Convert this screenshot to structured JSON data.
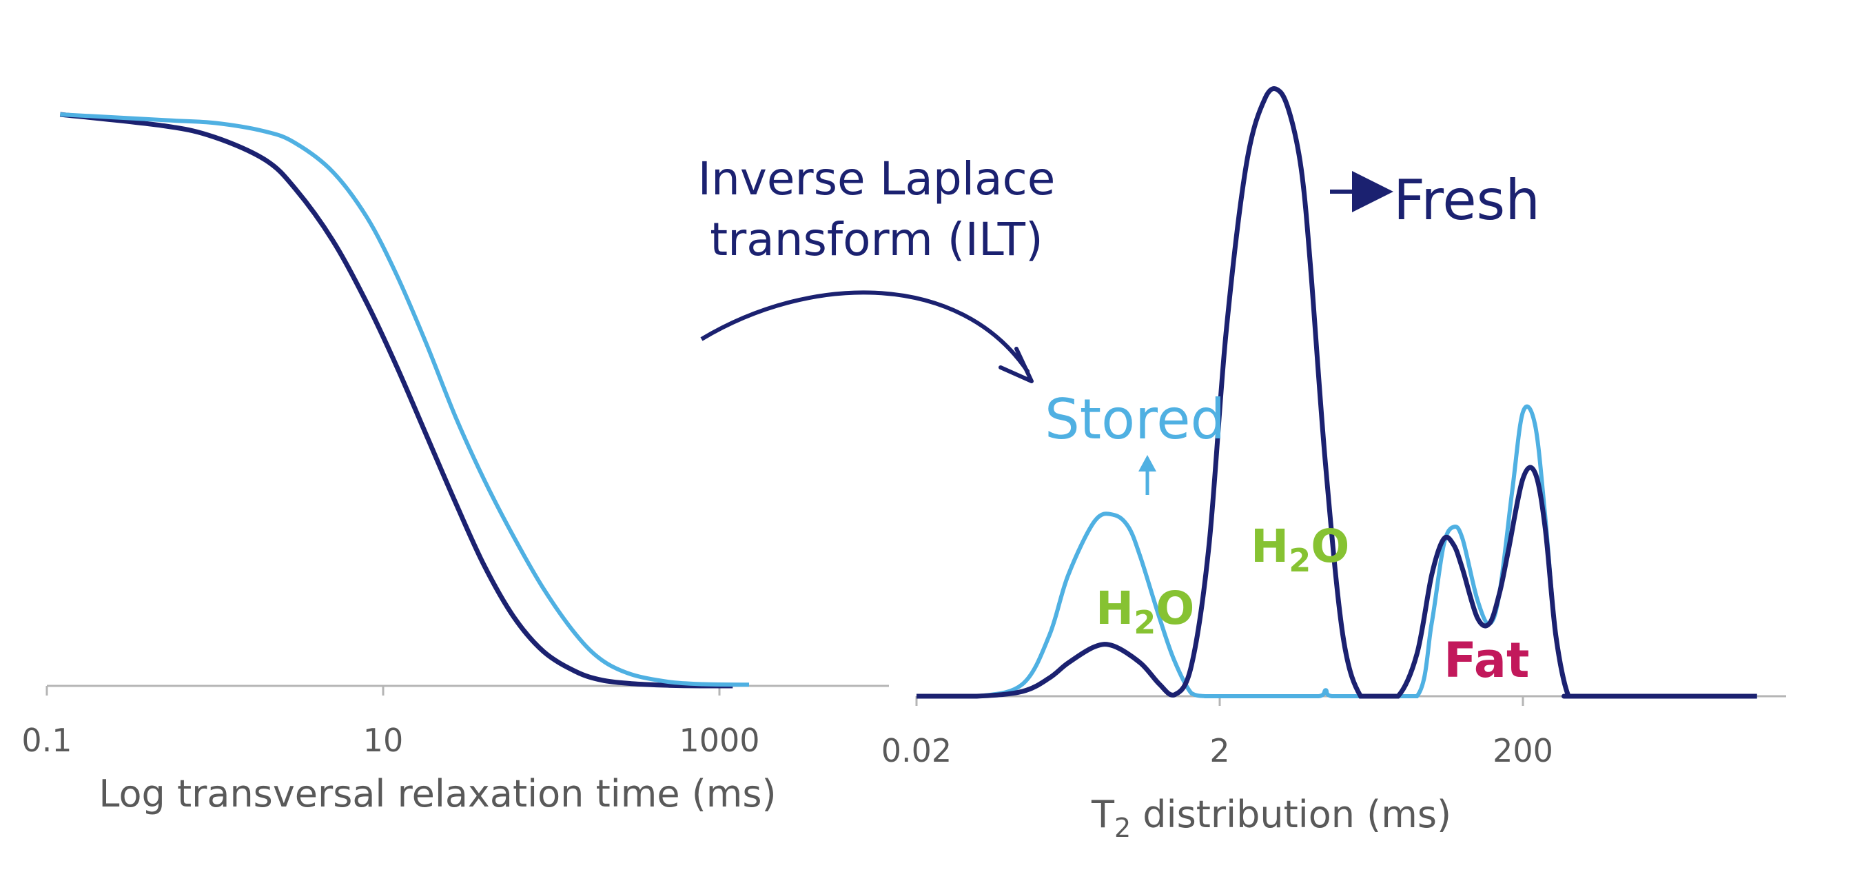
{
  "colors": {
    "fresh": "#1b2170",
    "stored": "#4fb0e2",
    "water_label": "#86c232",
    "fat_label": "#c2185b",
    "axis": "#b5b5b5",
    "axis_text": "#595959"
  },
  "annotation": {
    "line1": "Inverse Laplace",
    "line2": "transform (ILT)"
  },
  "legend": {
    "fresh": "Fresh",
    "stored": "Stored"
  },
  "labels": {
    "water": "H",
    "water_sub": "2",
    "water_tail": "O",
    "fat": "Fat"
  },
  "chart_data": [
    {
      "type": "line",
      "name": "decay",
      "xscale": "log",
      "xlim": [
        0.1,
        4000
      ],
      "ylim": [
        0,
        1
      ],
      "xlabel": "Log transversal relaxation time (ms)",
      "ylabel": "",
      "xticks": [
        0.1,
        10,
        1000
      ],
      "xtick_labels": [
        "0.1",
        "10",
        "1000"
      ],
      "grid": false,
      "series": [
        {
          "key": "fresh",
          "x": [
            0.12,
            0.5,
            1,
            2,
            3,
            5,
            8,
            12,
            18,
            27,
            40,
            60,
            90,
            140,
            200,
            300,
            500,
            800,
            1200
          ],
          "y": [
            1.0,
            0.98,
            0.96,
            0.92,
            0.87,
            0.78,
            0.67,
            0.56,
            0.44,
            0.32,
            0.21,
            0.12,
            0.06,
            0.025,
            0.01,
            0.004,
            0.001,
            0.0,
            0.0
          ]
        },
        {
          "key": "stored",
          "x": [
            0.12,
            0.5,
            1,
            2,
            3,
            5,
            8,
            12,
            18,
            27,
            40,
            60,
            90,
            140,
            200,
            300,
            500,
            800,
            1500
          ],
          "y": [
            1.0,
            0.99,
            0.985,
            0.97,
            0.95,
            0.9,
            0.82,
            0.72,
            0.6,
            0.47,
            0.36,
            0.26,
            0.17,
            0.09,
            0.045,
            0.02,
            0.007,
            0.003,
            0.002
          ]
        }
      ]
    },
    {
      "type": "line",
      "name": "t2-distribution",
      "xscale": "log",
      "xlim": [
        0.02,
        7000
      ],
      "ylim": [
        0,
        1
      ],
      "xlabel": "T",
      "xlabel_sub": "2",
      "xlabel_tail": " distribution (ms)",
      "ylabel": "",
      "xticks": [
        0.02,
        2,
        200
      ],
      "xtick_labels": [
        "0.02",
        "2",
        "200"
      ],
      "grid": false,
      "series": [
        {
          "key": "fresh",
          "x": [
            0.02,
            0.05,
            0.1,
            0.15,
            0.2,
            0.3,
            0.4,
            0.6,
            0.8,
            1.0,
            1.3,
            1.7,
            2.2,
            3,
            4,
            5,
            6,
            7,
            8,
            10,
            13,
            17,
            22,
            30,
            40,
            50,
            60,
            70,
            80,
            100,
            120,
            140,
            160,
            200,
            240,
            280,
            330,
            400,
            480,
            7000
          ],
          "y": [
            0.0,
            0.0,
            0.008,
            0.03,
            0.055,
            0.082,
            0.083,
            0.055,
            0.02,
            0.002,
            0.05,
            0.25,
            0.6,
            0.88,
            0.99,
            1.0,
            0.95,
            0.86,
            0.7,
            0.38,
            0.1,
            0.0,
            0.0,
            0.0,
            0.07,
            0.2,
            0.26,
            0.25,
            0.21,
            0.13,
            0.12,
            0.17,
            0.24,
            0.36,
            0.37,
            0.28,
            0.1,
            0.0,
            0.0,
            0.0
          ]
        },
        {
          "key": "stored",
          "x": [
            0.02,
            0.05,
            0.1,
            0.15,
            0.2,
            0.3,
            0.4,
            0.5,
            0.6,
            0.8,
            1.0,
            1.3,
            1.6,
            2.0,
            5,
            9,
            10,
            11,
            20,
            40,
            50,
            60,
            70,
            80,
            100,
            120,
            140,
            170,
            200,
            240,
            280,
            330,
            400,
            500,
            7000
          ],
          "y": [
            0.0,
            0.0,
            0.02,
            0.1,
            0.2,
            0.29,
            0.3,
            0.28,
            0.23,
            0.13,
            0.06,
            0.005,
            0.0,
            0.0,
            0.0,
            0.0,
            0.01,
            0.0,
            0.0,
            0.0,
            0.12,
            0.25,
            0.28,
            0.26,
            0.16,
            0.12,
            0.17,
            0.34,
            0.47,
            0.45,
            0.3,
            0.1,
            0.0,
            0.0,
            0.0
          ]
        }
      ]
    }
  ]
}
